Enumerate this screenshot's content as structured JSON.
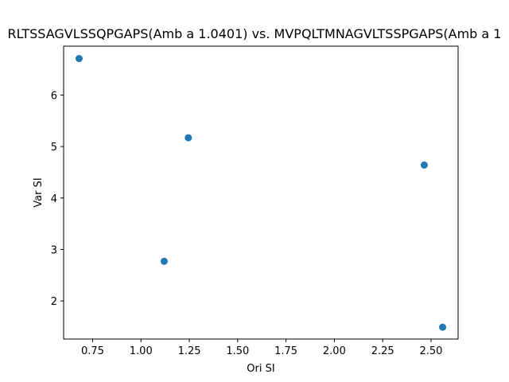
{
  "chart_data": {
    "type": "scatter",
    "title": "RLTSSAGVLSSQPGAPS(Amb a 1.0401) vs. MVPQLTMNAGVLTSSPGAPS(Amb a 1",
    "xlabel": "Ori SI",
    "ylabel": "Var SI",
    "xlim": [
      0.6,
      2.64
    ],
    "ylim": [
      1.26,
      6.95
    ],
    "xticks": [
      "0.75",
      "1.00",
      "1.25",
      "1.50",
      "1.75",
      "2.00",
      "2.25",
      "2.50"
    ],
    "yticks": [
      "2",
      "3",
      "4",
      "5",
      "6"
    ],
    "grid": false,
    "points": [
      {
        "x": 0.68,
        "y": 6.71
      },
      {
        "x": 1.245,
        "y": 5.17
      },
      {
        "x": 1.12,
        "y": 2.77
      },
      {
        "x": 2.465,
        "y": 4.64
      },
      {
        "x": 2.56,
        "y": 1.49
      }
    ],
    "marker_color": "#1f77b4"
  }
}
